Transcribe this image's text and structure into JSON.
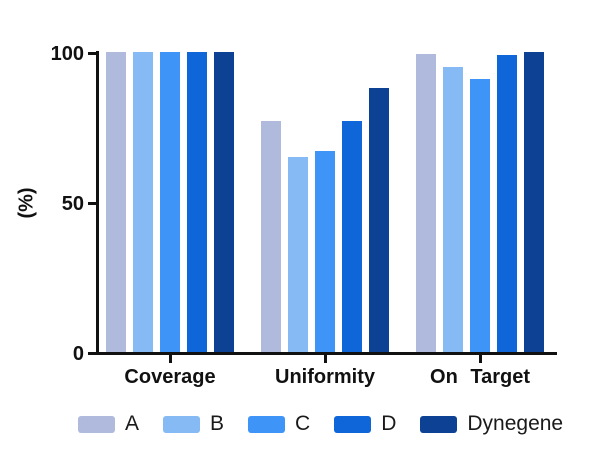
{
  "chart_data": {
    "type": "bar",
    "ylabel": "(%)",
    "xlabel": "",
    "ylim": [
      0,
      100
    ],
    "yticks": [
      0,
      50,
      100
    ],
    "grid": false,
    "legend_position": "bottom",
    "categories": [
      "Coverage",
      "Uniformity",
      "On Target"
    ],
    "series": [
      {
        "name": "A",
        "color": "#AFBADC",
        "values": [
          100,
          77,
          99.5
        ]
      },
      {
        "name": "B",
        "color": "#85BAF5",
        "values": [
          100,
          65,
          95
        ]
      },
      {
        "name": "C",
        "color": "#3E94F7",
        "values": [
          100,
          67,
          91
        ]
      },
      {
        "name": "D",
        "color": "#0E66D8",
        "values": [
          100,
          77,
          99
        ]
      },
      {
        "name": "Dynegene",
        "color": "#0C4193",
        "values": [
          100,
          88,
          100
        ]
      }
    ],
    "axis_color": "#111111"
  }
}
